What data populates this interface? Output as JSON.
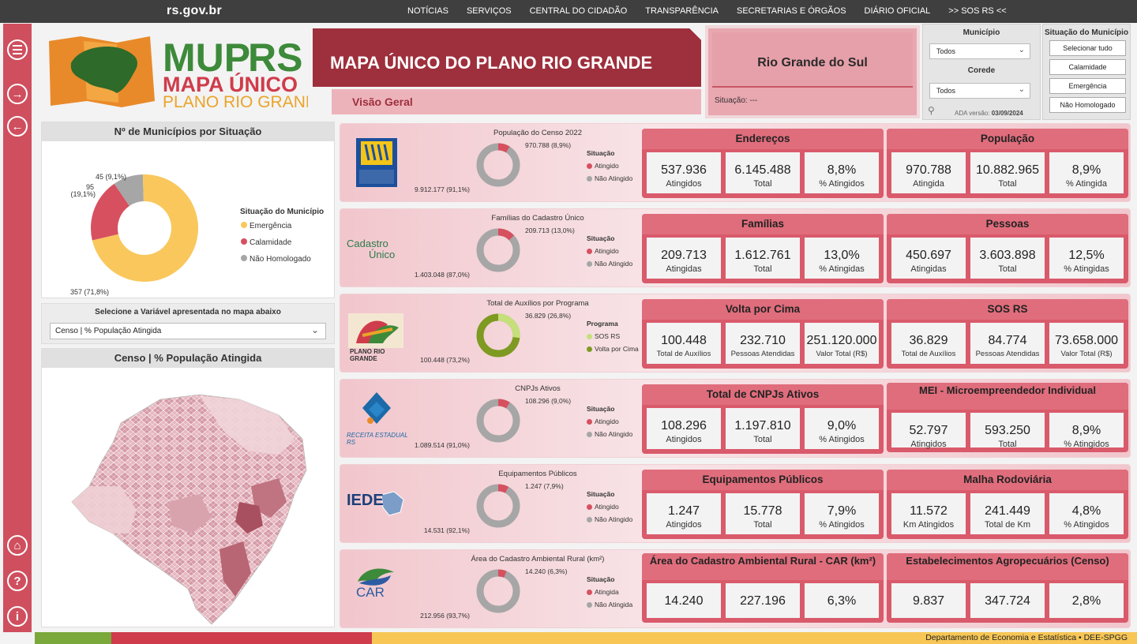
{
  "topbar": {
    "brand": "rs.gov.br",
    "nav": [
      "NOTÍCIAS",
      "SERVIÇOS",
      "CENTRAL DO CIDADÃO",
      "TRANSPARÊNCIA",
      "SECRETARIAS E ÓRGÃOS",
      "DIÁRIO OFICIAL",
      ">> SOS RS <<"
    ]
  },
  "logo": {
    "line1a": "MUP",
    "line1b": "RS",
    "line2": "MAPA ÚNICO",
    "line3": "PLANO RIO GRANDE"
  },
  "header": {
    "title": "MAPA ÚNICO DO PLANO RIO GRANDE",
    "subtitle": "Visão Geral",
    "region": "Rio Grande do Sul",
    "situacao": "Situação: ---"
  },
  "filters": {
    "municipio_label": "Município",
    "municipio_value": "Todos",
    "corede_label": "Corede",
    "corede_value": "Todos",
    "ada_label": "ADA versão:",
    "ada_value": "03/09/2024"
  },
  "situacao_filter": {
    "title": "Situação do Município",
    "buttons": [
      "Selecionar tudo",
      "Calamidade",
      "Emergência",
      "Não Homologado"
    ]
  },
  "donut_panel": {
    "title": "Nº de Municípios por Situação",
    "legend_title": "Situação do Município",
    "items": [
      {
        "label": "Emergência",
        "value": 357,
        "text": "357 (71,8%)",
        "color": "#f9c75c"
      },
      {
        "label": "Calamidade",
        "value": 95,
        "text": "95 (19,1%)",
        "color": "#d7505f"
      },
      {
        "label": "Não Homologado",
        "value": 45,
        "text": "45 (9,1%)",
        "color": "#a6a6a6"
      }
    ],
    "lbl95a": "95",
    "lbl95b": "(19,1%)"
  },
  "variable_panel": {
    "title": "Selecione a Variável apresentada no mapa abaixo",
    "value": "Censo | % População Atingida"
  },
  "map_panel": {
    "title": "Censo | % População Atingida"
  },
  "rows": [
    {
      "title": "População do Censo 2022",
      "logo": "censo",
      "a_text": "970.788 (8,9%)",
      "b_text": "9.912.177 (91,1%)",
      "pct": 8.9,
      "legend_title": "Situação",
      "legend": [
        "Atingido",
        "Não Atingido"
      ],
      "colors": [
        "#d7505f",
        "#a6a6a6"
      ],
      "cards": [
        {
          "title": "Endereços",
          "cells": [
            {
              "v": "537.936",
              "l": "Atingidos"
            },
            {
              "v": "6.145.488",
              "l": "Total"
            },
            {
              "v": "8,8%",
              "l": "% Atingidos"
            }
          ]
        },
        {
          "title": "População",
          "cells": [
            {
              "v": "970.788",
              "l": "Atingida"
            },
            {
              "v": "10.882.965",
              "l": "Total"
            },
            {
              "v": "8,9%",
              "l": "% Atingida"
            }
          ]
        }
      ]
    },
    {
      "title": "Famílias do Cadastro Único",
      "logo": "cadunico",
      "logo_text": "Cadastro",
      "logo_text2": "Único",
      "a_text": "209.713 (13,0%)",
      "b_text": "1.403.048 (87,0%)",
      "pct": 13.0,
      "legend_title": "Situação",
      "legend": [
        "Atingido",
        "Não Atingido"
      ],
      "colors": [
        "#d7505f",
        "#a6a6a6"
      ],
      "cards": [
        {
          "title": "Famílias",
          "cells": [
            {
              "v": "209.713",
              "l": "Atingidas"
            },
            {
              "v": "1.612.761",
              "l": "Total"
            },
            {
              "v": "13,0%",
              "l": "% Atingidas"
            }
          ]
        },
        {
          "title": "Pessoas",
          "cells": [
            {
              "v": "450.697",
              "l": "Atingidas"
            },
            {
              "v": "3.603.898",
              "l": "Total"
            },
            {
              "v": "12,5%",
              "l": "% Atingidas"
            }
          ]
        }
      ]
    },
    {
      "title": "Total de Auxílios por Programa",
      "logo": "prg",
      "logo_text": "PLANO RIO GRANDE",
      "a_text": "36.829 (26,8%)",
      "b_text": "100.448 (73,2%)",
      "pct": 26.8,
      "legend_title": "Programa",
      "legend": [
        "SOS RS",
        "Volta por Cima"
      ],
      "colors": [
        "#c5e07a",
        "#7e9a22"
      ],
      "cards": [
        {
          "title": "Volta por Cima",
          "cells": [
            {
              "v": "100.448",
              "l": "Total de Auxílios"
            },
            {
              "v": "232.710",
              "l": "Pessoas Atendidas"
            },
            {
              "v": "251.120.000",
              "l": "Valor Total (R$)"
            }
          ]
        },
        {
          "title": "SOS RS",
          "cells": [
            {
              "v": "36.829",
              "l": "Total de Auxílios"
            },
            {
              "v": "84.774",
              "l": "Pessoas Atendidas"
            },
            {
              "v": "73.658.000",
              "l": "Valor Total (R$)"
            }
          ]
        }
      ]
    },
    {
      "title": "CNPJs Ativos",
      "logo": "receita",
      "logo_text": "RECEITA ESTADUAL RS",
      "a_text": "108.296 (9,0%)",
      "b_text": "1.089.514 (91,0%)",
      "pct": 9.0,
      "legend_title": "Situação",
      "legend": [
        "Atingido",
        "Não Atingido"
      ],
      "colors": [
        "#d7505f",
        "#a6a6a6"
      ],
      "cards": [
        {
          "title": "Total de CNPJs Ativos",
          "cells": [
            {
              "v": "108.296",
              "l": "Atingidos"
            },
            {
              "v": "1.197.810",
              "l": "Total"
            },
            {
              "v": "9,0%",
              "l": "% Atingidos"
            }
          ]
        },
        {
          "title": "MEI - Microempreendedor Individual",
          "cells": [
            {
              "v": "52.797",
              "l": "Atingidos"
            },
            {
              "v": "593.250",
              "l": "Total"
            },
            {
              "v": "8,9%",
              "l": "% Atingidos"
            }
          ]
        }
      ]
    },
    {
      "title": "Equipamentos Públicos",
      "logo": "iede",
      "logo_text": "IEDE",
      "a_text": "1.247 (7,9%)",
      "b_text": "14.531 (92,1%)",
      "pct": 7.9,
      "legend_title": "Situação",
      "legend": [
        "Atingido",
        "Não Atingido"
      ],
      "colors": [
        "#d7505f",
        "#a6a6a6"
      ],
      "cards": [
        {
          "title": "Equipamentos Públicos",
          "cells": [
            {
              "v": "1.247",
              "l": "Atingidos"
            },
            {
              "v": "15.778",
              "l": "Total"
            },
            {
              "v": "7,9%",
              "l": "% Atingidos"
            }
          ]
        },
        {
          "title": "Malha Rodoviária",
          "cells": [
            {
              "v": "11.572",
              "l": "Km Atingidos"
            },
            {
              "v": "241.449",
              "l": "Total de Km"
            },
            {
              "v": "4,8%",
              "l": "% Atingidos"
            }
          ]
        }
      ]
    },
    {
      "title": "Área do Cadastro Ambiental Rural (km²)",
      "logo": "car",
      "logo_text": "CAR",
      "a_text": "14.240 (6,3%)",
      "b_text": "212.956 (93,7%)",
      "pct": 6.3,
      "legend_title": "Situação",
      "legend": [
        "Atingida",
        "Não Atingida"
      ],
      "colors": [
        "#d7505f",
        "#a6a6a6"
      ],
      "cards": [
        {
          "title": "Área do Cadastro Ambiental Rural - CAR (km²)",
          "cells": [
            {
              "v": "14.240",
              "l": ""
            },
            {
              "v": "227.196",
              "l": ""
            },
            {
              "v": "6,3%",
              "l": ""
            }
          ]
        },
        {
          "title": "Estabelecimentos Agropecuários (Censo)",
          "cells": [
            {
              "v": "9.837",
              "l": ""
            },
            {
              "v": "347.724",
              "l": ""
            },
            {
              "v": "2,8%",
              "l": ""
            }
          ]
        }
      ]
    }
  ],
  "footer": "Departamento de Economia e Estatística • DEE-SPGG"
}
